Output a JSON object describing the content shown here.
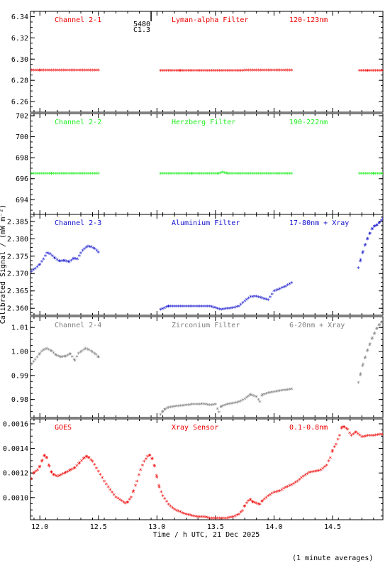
{
  "chart_data": {
    "type": "scatter",
    "xlabel": "Time / h UTC, 21 Dec 2025",
    "ylabel": "Calibrated Signal / (mW m⁻²)",
    "xlim": [
      11.92,
      14.93
    ],
    "x_ticks": [
      12.0,
      12.5,
      13.0,
      13.5,
      14.0,
      14.5
    ],
    "x_tick_labels": [
      "12.0",
      "12.5",
      "13.0",
      "13.5",
      "14.0",
      "14.5"
    ],
    "footnote": "(1 minute averages)",
    "panels": [
      {
        "name": "Channel 2-1",
        "filter": "Lyman-alpha Filter",
        "band": "120-123nm",
        "color": "#ee0000",
        "ylim": [
          6.25,
          6.345
        ],
        "y_ticks": [
          6.26,
          6.28,
          6.3,
          6.32,
          6.34
        ],
        "y_tick_labels": [
          "6.26",
          "6.28",
          "6.30",
          "6.32",
          "6.34"
        ],
        "marker_annotation": {
          "x": 12.95,
          "line1": "5480",
          "line2": "C1.3"
        },
        "series": [
          {
            "x": [
              11.93,
              12.0,
              12.1,
              12.2,
              12.3,
              12.4,
              12.5
            ],
            "y": [
              6.289,
              6.289,
              6.2891,
              6.2892,
              6.2892,
              6.2893,
              6.2892
            ]
          },
          {
            "x": [
              13.03,
              13.2,
              13.4,
              13.6,
              13.8,
              14.0,
              14.15
            ],
            "y": [
              6.2888,
              6.2888,
              6.2889,
              6.2889,
              6.289,
              6.2891,
              6.2893
            ]
          },
          {
            "x": [
              14.73,
              14.8,
              14.93
            ],
            "y": [
              6.2888,
              6.2888,
              6.2889
            ]
          }
        ]
      },
      {
        "name": "Channel 2-2",
        "filter": "Herzberg Filter",
        "band": "190-222nm",
        "color": "#22ee22",
        "ylim": [
          692.6,
          702.2
        ],
        "y_ticks": [
          694,
          696,
          698,
          700,
          702
        ],
        "y_tick_labels": [
          "694",
          "696",
          "698",
          "700",
          "702"
        ],
        "series": [
          {
            "x": [
              11.93,
              12.1,
              12.3,
              12.5
            ],
            "y": [
              696.45,
              696.45,
              696.45,
              696.45
            ]
          },
          {
            "x": [
              13.03,
              13.3,
              13.53,
              13.56,
              13.6,
              13.8,
              14.0,
              14.15
            ],
            "y": [
              696.45,
              696.45,
              696.45,
              696.6,
              696.45,
              696.45,
              696.45,
              696.45
            ]
          },
          {
            "x": [
              14.73,
              14.85,
              14.93
            ],
            "y": [
              696.45,
              696.45,
              696.45
            ]
          }
        ]
      },
      {
        "name": "Channel 2-3",
        "filter": "Aluminium Filter",
        "band": "17-80nm + Xray",
        "color": "#1111cc",
        "ylim": [
          2.358,
          2.387
        ],
        "y_ticks": [
          2.36,
          2.365,
          2.37,
          2.375,
          2.38,
          2.385
        ],
        "y_tick_labels": [
          "2.360",
          "2.365",
          "2.370",
          "2.375",
          "2.380",
          "2.385"
        ],
        "series": [
          {
            "x": [
              11.93,
              11.96,
              12.0,
              12.03,
              12.06,
              12.09,
              12.13,
              12.17,
              12.21,
              12.25,
              12.29,
              12.32,
              12.35,
              12.38,
              12.41,
              12.44,
              12.47,
              12.5
            ],
            "y": [
              2.3705,
              2.3713,
              2.3725,
              2.374,
              2.3758,
              2.3755,
              2.3742,
              2.3734,
              2.3736,
              2.3732,
              2.3742,
              2.374,
              2.3758,
              2.377,
              2.3777,
              2.3775,
              2.377,
              2.376
            ]
          },
          {
            "x": [
              13.03,
              13.1,
              13.2,
              13.3,
              13.4,
              13.45,
              13.5,
              13.55,
              13.6,
              13.65,
              13.7,
              13.75,
              13.8,
              13.85,
              13.9,
              13.95,
              14.0,
              14.05,
              14.1,
              14.15
            ],
            "y": [
              2.3595,
              2.3605,
              2.3605,
              2.3605,
              2.3605,
              2.3605,
              2.36,
              2.3595,
              2.3598,
              2.36,
              2.3605,
              2.362,
              2.3632,
              2.3633,
              2.3628,
              2.3623,
              2.3648,
              2.3655,
              2.3662,
              2.3672
            ]
          },
          {
            "x": [
              14.72,
              14.74,
              14.76,
              14.78,
              14.8,
              14.82,
              14.84,
              14.86,
              14.88,
              14.9,
              14.93
            ],
            "y": [
              2.3715,
              2.3738,
              2.3762,
              2.3782,
              2.38,
              2.3815,
              2.3828,
              2.3835,
              2.3838,
              2.3845,
              2.3857
            ]
          }
        ]
      },
      {
        "name": "Channel 2-4",
        "filter": "Zirconium Filter",
        "band": "6-20nm + Xray",
        "color": "#808080",
        "ylim": [
          0.9725,
          1.0145
        ],
        "y_ticks": [
          0.98,
          0.99,
          1.0,
          1.01
        ],
        "y_tick_labels": [
          "0.98",
          "0.99",
          "1.00",
          "1.01"
        ],
        "series": [
          {
            "x": [
              11.93,
              11.96,
              12.0,
              12.03,
              12.06,
              12.1,
              12.14,
              12.18,
              12.22,
              12.26,
              12.3,
              12.33,
              12.36,
              12.39,
              12.42,
              12.45,
              12.48,
              12.5
            ],
            "y": [
              0.9945,
              0.9965,
              0.999,
              1.0005,
              1.001,
              1.0,
              0.9982,
              0.9975,
              0.9978,
              0.9988,
              0.996,
              0.999,
              1.0,
              1.001,
              1.0005,
              0.9995,
              0.9985,
              0.9975
            ]
          },
          {
            "x": [
              13.03,
              13.05,
              13.07,
              13.1,
              13.15,
              13.2,
              13.25,
              13.3,
              13.35,
              13.4,
              13.45,
              13.5,
              13.53,
              13.55,
              13.6,
              13.65,
              13.7,
              13.75,
              13.78,
              13.8,
              13.85,
              13.88,
              13.9,
              13.95,
              14.0,
              14.05,
              14.1,
              14.15
            ],
            "y": [
              0.9735,
              0.9748,
              0.9758,
              0.9765,
              0.977,
              0.9772,
              0.9775,
              0.9778,
              0.9778,
              0.978,
              0.9775,
              0.9778,
              0.9745,
              0.977,
              0.9778,
              0.9782,
              0.9788,
              0.98,
              0.9812,
              0.9818,
              0.981,
              0.9788,
              0.9818,
              0.9825,
              0.983,
              0.9835,
              0.9838,
              0.9842
            ]
          },
          {
            "x": [
              14.72,
              14.74,
              14.76,
              14.78,
              14.8,
              14.82,
              14.84,
              14.86,
              14.88,
              14.9,
              14.93
            ],
            "y": [
              0.9868,
              0.9905,
              0.9945,
              0.9975,
              1.0005,
              1.003,
              1.0055,
              1.0075,
              1.0095,
              1.011,
              1.0125
            ]
          }
        ]
      },
      {
        "name": "GOES",
        "filter": "Xray Sensor",
        "band": "0.1-0.8nm",
        "color": "#ee0000",
        "ylim": [
          0.00082,
          0.00164
        ],
        "y_ticks": [
          0.001,
          0.0012,
          0.0014,
          0.0016
        ],
        "y_tick_labels": [
          "0.0010",
          "0.0012",
          "0.0014",
          "0.0016"
        ],
        "series": [
          {
            "x": [
              11.93,
              11.95,
              11.98,
              12.0,
              12.02,
              12.04,
              12.06,
              12.08,
              12.1,
              12.12,
              12.15,
              12.18,
              12.22,
              12.26,
              12.3,
              12.34,
              12.38,
              12.4,
              12.42,
              12.45,
              12.5,
              12.55,
              12.6,
              12.65,
              12.7,
              12.73,
              12.75,
              12.78,
              12.8,
              12.83,
              12.86,
              12.89,
              12.92,
              12.94,
              12.96,
              12.98,
              13.0,
              13.02,
              13.05,
              13.1,
              13.15,
              13.2,
              13.25,
              13.3,
              13.35,
              13.4,
              13.45,
              13.5,
              13.55,
              13.6,
              13.65,
              13.7,
              13.73,
              13.75,
              13.78,
              13.8,
              13.82,
              13.85,
              13.88,
              13.9,
              13.95,
              14.0,
              14.05,
              14.1,
              14.15,
              14.2,
              14.25,
              14.3,
              14.35,
              14.4,
              14.45,
              14.48,
              14.5,
              14.53,
              14.56,
              14.58,
              14.6,
              14.63,
              14.66,
              14.7,
              14.75,
              14.8,
              14.85,
              14.9,
              14.93
            ],
            "y": [
              0.00115,
              0.0012,
              0.00122,
              0.00125,
              0.0013,
              0.00134,
              0.00132,
              0.00125,
              0.0012,
              0.00118,
              0.00117,
              0.00118,
              0.0012,
              0.00122,
              0.00124,
              0.00128,
              0.00132,
              0.00133,
              0.00132,
              0.00129,
              0.00121,
              0.00113,
              0.00106,
              0.001,
              0.00097,
              0.00095,
              0.00096,
              0.001,
              0.00105,
              0.00113,
              0.00122,
              0.00129,
              0.00133,
              0.00134,
              0.00131,
              0.00125,
              0.00116,
              0.00108,
              0.00101,
              0.00094,
              0.0009,
              0.00088,
              0.00086,
              0.00085,
              0.00084,
              0.00084,
              0.00083,
              0.00083,
              0.00083,
              0.00083,
              0.00084,
              0.00086,
              0.00089,
              0.00093,
              0.00097,
              0.00098,
              0.00096,
              0.00095,
              0.00094,
              0.00097,
              0.00101,
              0.00104,
              0.00105,
              0.00108,
              0.0011,
              0.00113,
              0.00117,
              0.0012,
              0.00121,
              0.00122,
              0.00126,
              0.00132,
              0.00138,
              0.00143,
              0.0015,
              0.00157,
              0.00157,
              0.00155,
              0.0015,
              0.00153,
              0.00149,
              0.0015,
              0.0015,
              0.00151,
              0.00151
            ]
          }
        ]
      }
    ]
  }
}
